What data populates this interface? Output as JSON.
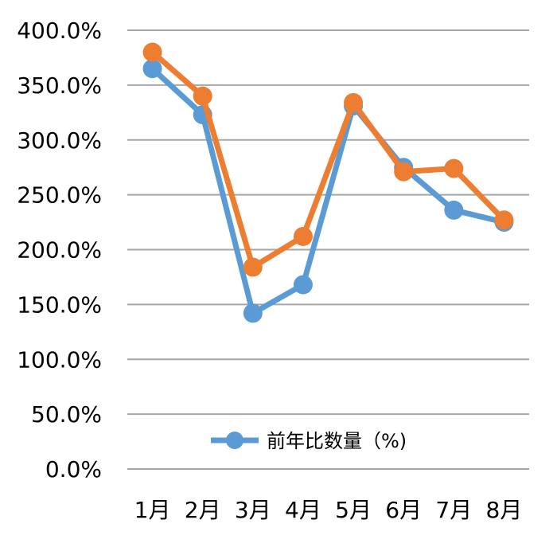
{
  "chart_data": {
    "type": "line",
    "categories": [
      "1月",
      "2月",
      "3月",
      "4月",
      "5月",
      "6月",
      "7月",
      "8月"
    ],
    "y_tick_labels": [
      "0.0%",
      "50.0%",
      "100.0%",
      "150.0%",
      "200.0%",
      "250.0%",
      "300.0%",
      "350.0%",
      "400.0%"
    ],
    "ylim": [
      0,
      400
    ],
    "grid": true,
    "legend_position": "bottom-center",
    "series": [
      {
        "name": "前年比数量（%)",
        "color": "#5b9bd5",
        "values": [
          365,
          323,
          142,
          168,
          331,
          275,
          236,
          225
        ]
      },
      {
        "color": "#ed7d31",
        "values": [
          380,
          340,
          184,
          212,
          334,
          271,
          274,
          227
        ]
      }
    ]
  }
}
